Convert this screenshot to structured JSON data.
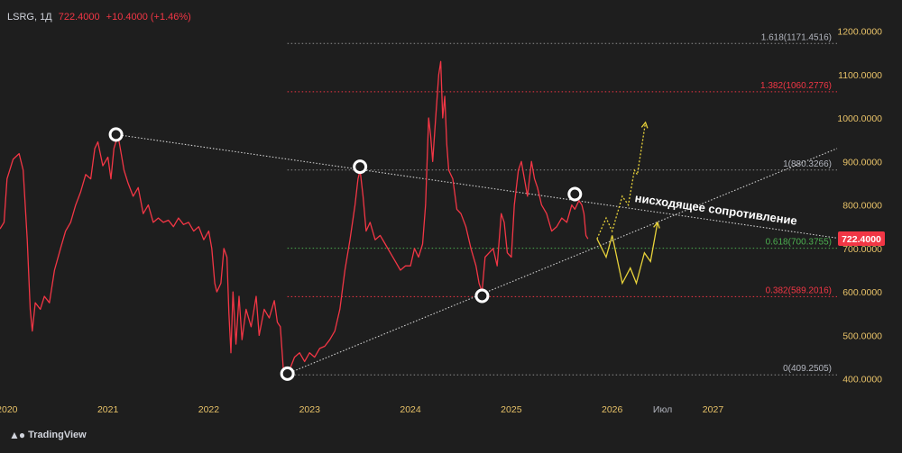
{
  "header": {
    "ticker": "LSRG, 1Д",
    "price": "722.4000",
    "change": "+10.4000 (+1.46%)"
  },
  "branding": {
    "name": "TradingView",
    "icon": "tradingview-logo-icon"
  },
  "colors": {
    "background": "#1e1e1e",
    "price_line": "#f23645",
    "axis_year": "#e8c268",
    "axis_text": "#b2b5be",
    "fib_up_target": "#f23645",
    "fib_618": "#4caf50",
    "fib_382": "#f23645",
    "fib_neutral": "#8d8d8d",
    "forecast": "#e8d23a",
    "trendline": "#d0d0d0",
    "pivot": "#ffffff",
    "price_tag": "#f23645"
  },
  "chart_data": {
    "type": "line",
    "title": "",
    "ylim": [
      360,
      1230
    ],
    "grid": false,
    "y_ticks": [
      "1200.0000",
      "1100.0000",
      "1000.0000",
      "900.0000",
      "800.0000",
      "700.0000",
      "600.0000",
      "500.0000",
      "400.0000"
    ],
    "y_tick_values": [
      1200,
      1100,
      1000,
      900,
      800,
      700,
      600,
      500,
      400
    ],
    "x_ticks": [
      {
        "label": "2020",
        "x": 2020.0,
        "year": true
      },
      {
        "label": "2021",
        "x": 2021.0,
        "year": true
      },
      {
        "label": "2022",
        "x": 2022.0,
        "year": true
      },
      {
        "label": "2023",
        "x": 2023.0,
        "year": true
      },
      {
        "label": "2024",
        "x": 2024.0,
        "year": true
      },
      {
        "label": "2025",
        "x": 2025.0,
        "year": true
      },
      {
        "label": "2026",
        "x": 2026.0,
        "year": true
      },
      {
        "label": "Июл",
        "x": 2026.5,
        "year": false
      },
      {
        "label": "2027",
        "x": 2027.0,
        "year": true
      }
    ],
    "xlim": [
      2019.93,
      2028.23
    ],
    "last_price": {
      "label": "722.4000",
      "value": 722.4
    },
    "series": [
      {
        "points": [
          [
            2019.93,
            745
          ],
          [
            2019.97,
            760
          ],
          [
            2020.0,
            860
          ],
          [
            2020.06,
            905
          ],
          [
            2020.12,
            918
          ],
          [
            2020.16,
            880
          ],
          [
            2020.2,
            720
          ],
          [
            2020.23,
            560
          ],
          [
            2020.25,
            510
          ],
          [
            2020.28,
            575
          ],
          [
            2020.33,
            560
          ],
          [
            2020.37,
            590
          ],
          [
            2020.42,
            575
          ],
          [
            2020.47,
            650
          ],
          [
            2020.53,
            700
          ],
          [
            2020.58,
            740
          ],
          [
            2020.63,
            760
          ],
          [
            2020.68,
            800
          ],
          [
            2020.73,
            830
          ],
          [
            2020.78,
            870
          ],
          [
            2020.83,
            860
          ],
          [
            2020.87,
            930
          ],
          [
            2020.9,
            945
          ],
          [
            2020.95,
            890
          ],
          [
            2021.0,
            910
          ],
          [
            2021.03,
            860
          ],
          [
            2021.06,
            930
          ],
          [
            2021.1,
            960
          ],
          [
            2021.13,
            920
          ],
          [
            2021.16,
            880
          ],
          [
            2021.2,
            850
          ],
          [
            2021.25,
            820
          ],
          [
            2021.3,
            840
          ],
          [
            2021.35,
            780
          ],
          [
            2021.4,
            800
          ],
          [
            2021.45,
            760
          ],
          [
            2021.5,
            770
          ],
          [
            2021.55,
            760
          ],
          [
            2021.6,
            765
          ],
          [
            2021.65,
            750
          ],
          [
            2021.7,
            770
          ],
          [
            2021.75,
            755
          ],
          [
            2021.8,
            760
          ],
          [
            2021.85,
            740
          ],
          [
            2021.9,
            750
          ],
          [
            2021.95,
            720
          ],
          [
            2022.0,
            740
          ],
          [
            2022.03,
            700
          ],
          [
            2022.06,
            620
          ],
          [
            2022.08,
            600
          ],
          [
            2022.12,
            620
          ],
          [
            2022.15,
            700
          ],
          [
            2022.18,
            680
          ],
          [
            2022.2,
            550
          ],
          [
            2022.22,
            460
          ],
          [
            2022.24,
            600
          ],
          [
            2022.27,
            480
          ],
          [
            2022.3,
            590
          ],
          [
            2022.33,
            490
          ],
          [
            2022.37,
            560
          ],
          [
            2022.42,
            520
          ],
          [
            2022.47,
            590
          ],
          [
            2022.5,
            500
          ],
          [
            2022.55,
            560
          ],
          [
            2022.6,
            540
          ],
          [
            2022.65,
            580
          ],
          [
            2022.68,
            530
          ],
          [
            2022.71,
            520
          ],
          [
            2022.74,
            420
          ],
          [
            2022.77,
            410
          ],
          [
            2022.8,
            420
          ],
          [
            2022.85,
            450
          ],
          [
            2022.9,
            460
          ],
          [
            2022.95,
            440
          ],
          [
            2023.0,
            460
          ],
          [
            2023.05,
            450
          ],
          [
            2023.1,
            470
          ],
          [
            2023.15,
            475
          ],
          [
            2023.2,
            490
          ],
          [
            2023.25,
            510
          ],
          [
            2023.3,
            560
          ],
          [
            2023.35,
            650
          ],
          [
            2023.4,
            720
          ],
          [
            2023.45,
            800
          ],
          [
            2023.48,
            860
          ],
          [
            2023.5,
            880
          ],
          [
            2023.53,
            820
          ],
          [
            2023.56,
            740
          ],
          [
            2023.6,
            760
          ],
          [
            2023.65,
            720
          ],
          [
            2023.7,
            730
          ],
          [
            2023.75,
            710
          ],
          [
            2023.8,
            690
          ],
          [
            2023.85,
            670
          ],
          [
            2023.9,
            650
          ],
          [
            2023.95,
            660
          ],
          [
            2024.0,
            660
          ],
          [
            2024.04,
            700
          ],
          [
            2024.08,
            680
          ],
          [
            2024.12,
            710
          ],
          [
            2024.15,
            800
          ],
          [
            2024.18,
            1000
          ],
          [
            2024.2,
            960
          ],
          [
            2024.22,
            900
          ],
          [
            2024.25,
            1000
          ],
          [
            2024.28,
            1100
          ],
          [
            2024.3,
            1130
          ],
          [
            2024.32,
            1000
          ],
          [
            2024.34,
            1050
          ],
          [
            2024.36,
            940
          ],
          [
            2024.38,
            880
          ],
          [
            2024.42,
            860
          ],
          [
            2024.46,
            790
          ],
          [
            2024.5,
            780
          ],
          [
            2024.55,
            750
          ],
          [
            2024.6,
            700
          ],
          [
            2024.65,
            660
          ],
          [
            2024.68,
            620
          ],
          [
            2024.71,
            600
          ],
          [
            2024.74,
            680
          ],
          [
            2024.78,
            690
          ],
          [
            2024.82,
            700
          ],
          [
            2024.86,
            660
          ],
          [
            2024.9,
            780
          ],
          [
            2024.93,
            760
          ],
          [
            2024.96,
            690
          ],
          [
            2025.0,
            680
          ],
          [
            2025.03,
            800
          ],
          [
            2025.07,
            880
          ],
          [
            2025.1,
            900
          ],
          [
            2025.13,
            860
          ],
          [
            2025.16,
            820
          ],
          [
            2025.2,
            900
          ],
          [
            2025.23,
            860
          ],
          [
            2025.26,
            840
          ],
          [
            2025.3,
            800
          ],
          [
            2025.35,
            780
          ],
          [
            2025.4,
            740
          ],
          [
            2025.45,
            750
          ],
          [
            2025.5,
            770
          ],
          [
            2025.55,
            760
          ],
          [
            2025.6,
            800
          ],
          [
            2025.63,
            790
          ],
          [
            2025.67,
            810
          ],
          [
            2025.7,
            800
          ],
          [
            2025.72,
            780
          ],
          [
            2025.74,
            730
          ],
          [
            2025.76,
            722
          ]
        ]
      },
      {
        "name": "",
        "style": "forecast-solid",
        "points": [
          [
            2025.85,
            722
          ],
          [
            2025.94,
            680
          ],
          [
            2026.0,
            730
          ],
          [
            2026.1,
            620
          ],
          [
            2026.18,
            655
          ],
          [
            2026.24,
            620
          ],
          [
            2026.32,
            690
          ],
          [
            2026.38,
            670
          ],
          [
            2026.45,
            760
          ]
        ]
      },
      {
        "name": "",
        "style": "forecast-dotted",
        "points": [
          [
            2025.85,
            722
          ],
          [
            2025.94,
            770
          ],
          [
            2026.0,
            740
          ],
          [
            2026.1,
            820
          ],
          [
            2026.16,
            800
          ],
          [
            2026.22,
            880
          ],
          [
            2026.25,
            870
          ],
          [
            2026.33,
            990
          ]
        ]
      }
    ],
    "trendlines": [
      {
        "name": "descending-resistance",
        "from": [
          2021.08,
          962
        ],
        "to": [
          2028.23,
          724
        ]
      },
      {
        "name": "ascending-support",
        "from": [
          2022.78,
          412
        ],
        "to": [
          2028.23,
          930
        ]
      }
    ],
    "pivots": [
      {
        "x": 2021.08,
        "y": 962
      },
      {
        "x": 2023.5,
        "y": 888
      },
      {
        "x": 2024.71,
        "y": 591
      },
      {
        "x": 2025.63,
        "y": 825
      },
      {
        "x": 2022.78,
        "y": 412
      }
    ],
    "fib_levels": [
      {
        "label": "1.618(1171.4516)",
        "value": 1171.4516,
        "color": "#8d8d8d"
      },
      {
        "label": "1.382(1060.2776)",
        "value": 1060.2776,
        "color": "#f23645"
      },
      {
        "label": "1(880.3266)",
        "value": 880.3266,
        "color": "#8d8d8d"
      },
      {
        "label": "0.618(700.3755)",
        "value": 700.3755,
        "color": "#4caf50"
      },
      {
        "label": "0.382(589.2016)",
        "value": 589.2016,
        "color": "#f23645"
      },
      {
        "label": "0(409.2505)",
        "value": 409.2505,
        "color": "#8d8d8d"
      }
    ],
    "fib_x_start": 2022.78,
    "annotation": "нисходящее сопротивление"
  }
}
